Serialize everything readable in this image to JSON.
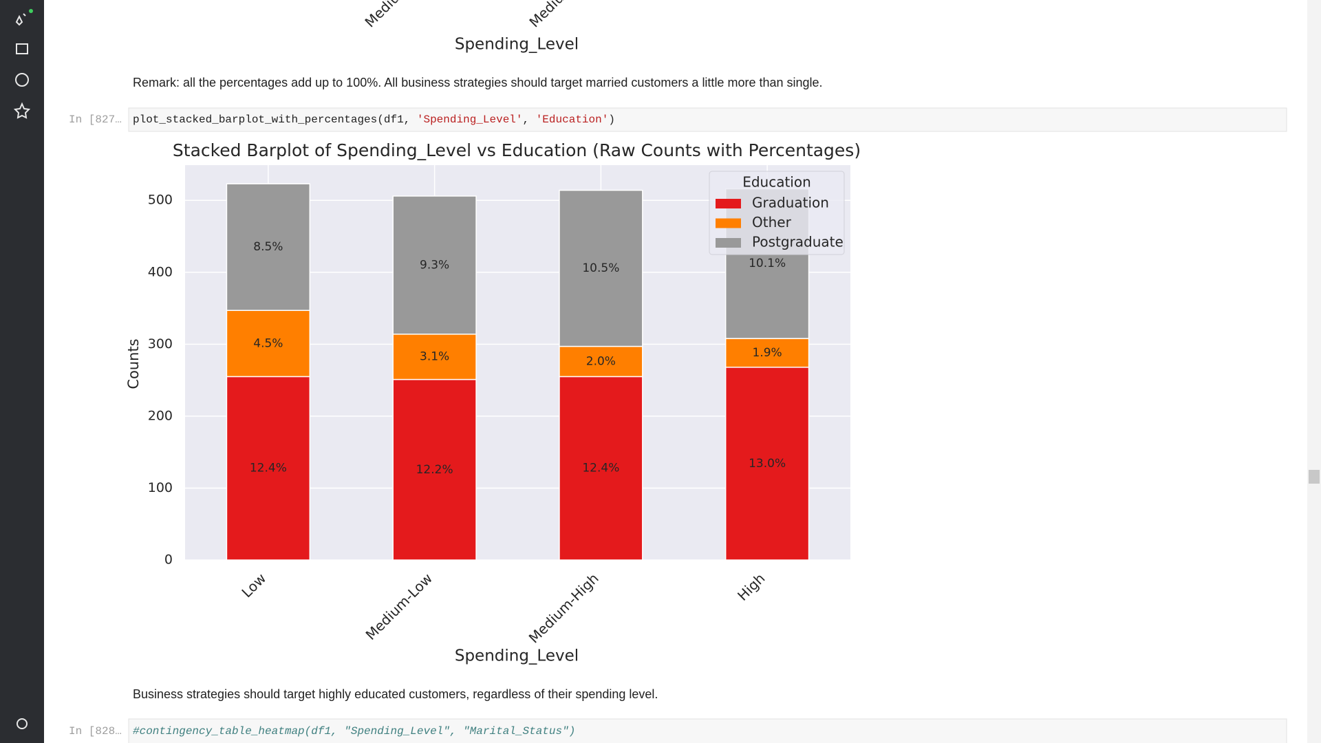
{
  "previous_output": {
    "x_tick_labels": [
      "Medium-Low",
      "Medium-High"
    ],
    "x_label": "Spending_Level"
  },
  "remark_1": "Remark: all the percentages add up to 100%. All business strategies should target married customers a little more than single.",
  "code_cell_1": {
    "prompt": "In [827…",
    "code": [
      "plot_stacked_barplot_with_percentages(df1, ",
      "'Spending_Level'",
      ", ",
      "'Education'",
      ")"
    ]
  },
  "chart_data": {
    "type": "stacked_bar",
    "title": "Stacked Barplot of Spending_Level vs Education (Raw Counts with Percentages)",
    "x_label": "Spending_Level",
    "y_label": "Counts",
    "categories": [
      "Low",
      "Medium-Low",
      "Medium-High",
      "High"
    ],
    "series": [
      {
        "name": "Graduation",
        "color": "#e41a1c",
        "values": [
          255,
          251,
          255,
          268
        ],
        "value_labels": [
          "12.4%",
          "12.2%",
          "12.4%",
          "13.0%"
        ]
      },
      {
        "name": "Other",
        "color": "#ff7f00",
        "values": [
          92,
          63,
          42,
          40
        ],
        "value_labels": [
          "4.5%",
          "3.1%",
          "2.0%",
          "1.9%"
        ]
      },
      {
        "name": "Postgraduate",
        "color": "#999999",
        "values": [
          176,
          192,
          217,
          208
        ],
        "value_labels": [
          "8.5%",
          "9.3%",
          "10.5%",
          "10.1%"
        ]
      }
    ],
    "ylim": [
      0,
      549
    ],
    "yticks": [
      0,
      100,
      200,
      300,
      400,
      500
    ],
    "grid": true,
    "legend_title": "Education",
    "legend_position": "upper right"
  },
  "remark_2": "Business strategies should target highly educated customers, regardless of their spending level.",
  "code_cell_2": {
    "prompt": "In [828…",
    "code": "#contingency_table_heatmap(df1, \"Spending_Level\", \"Marital_Status\")"
  }
}
